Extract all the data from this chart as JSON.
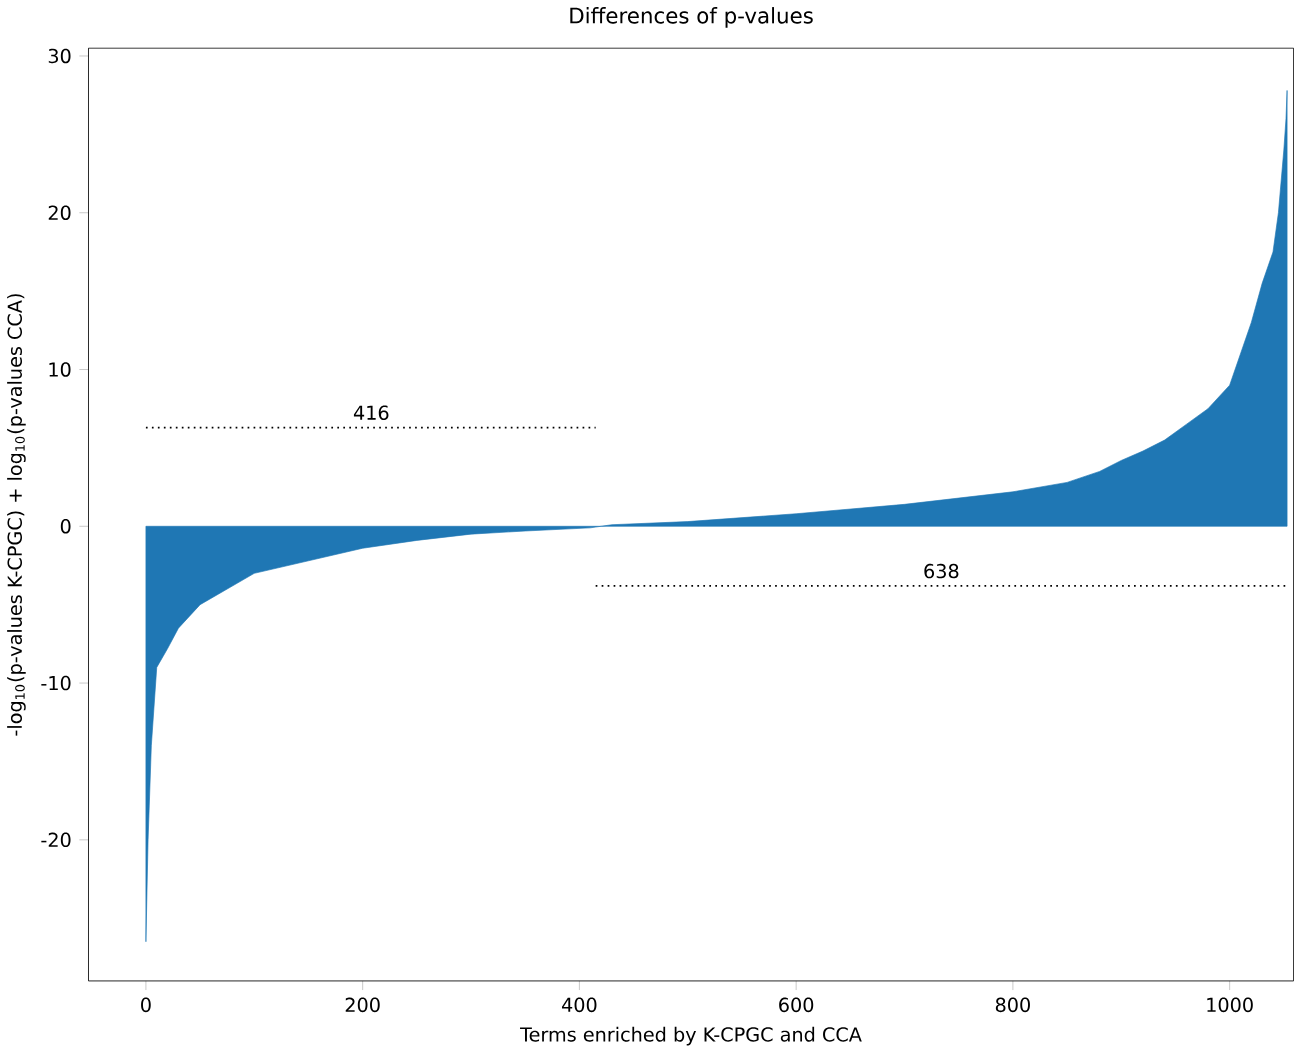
{
  "chart_data": {
    "type": "area",
    "title": "Differences of p-values",
    "xlabel": "Terms enriched by K-CPGC and CCA",
    "ylabel": "-log$_{10}$(p-values K-CPGC) + log$_{10}$(p-values CCA)",
    "xlim": [
      -53,
      1059
    ],
    "ylim": [
      -29,
      30.5
    ],
    "xticks": [
      0,
      200,
      400,
      600,
      800,
      1000
    ],
    "yticks": [
      -20,
      -10,
      0,
      10,
      20,
      30
    ],
    "series": [
      {
        "color": "#1f77b4",
        "x": [
          0,
          2,
          5,
          10,
          20,
          30,
          50,
          75,
          100,
          150,
          200,
          250,
          300,
          350,
          410,
          430,
          500,
          600,
          700,
          800,
          850,
          880,
          900,
          920,
          940,
          960,
          980,
          1000,
          1010,
          1020,
          1030,
          1040,
          1045,
          1050,
          1052,
          1053
        ],
        "values": [
          -26.5,
          -20,
          -14,
          -9,
          -7.8,
          -6.5,
          -5,
          -4,
          -3,
          -2.2,
          -1.4,
          -0.9,
          -0.5,
          -0.3,
          -0.1,
          0.1,
          0.3,
          0.8,
          1.4,
          2.2,
          2.8,
          3.5,
          4.2,
          4.8,
          5.5,
          6.5,
          7.5,
          9,
          11,
          13,
          15.5,
          17.5,
          20,
          24,
          26,
          27.8
        ]
      },
      {
        "type": "line",
        "color": "#000000",
        "line_style": "dotted",
        "x": [
          0,
          415
        ],
        "values": [
          6.3,
          6.3
        ]
      },
      {
        "type": "line",
        "color": "#000000",
        "line_style": "dotted",
        "x": [
          415,
          1053
        ],
        "values": [
          -3.8,
          -3.8
        ]
      }
    ],
    "annotations": [
      {
        "text": "416",
        "x": 208,
        "y": 6.3
      },
      {
        "text": "638",
        "x": 734,
        "y": -3.8
      }
    ]
  }
}
